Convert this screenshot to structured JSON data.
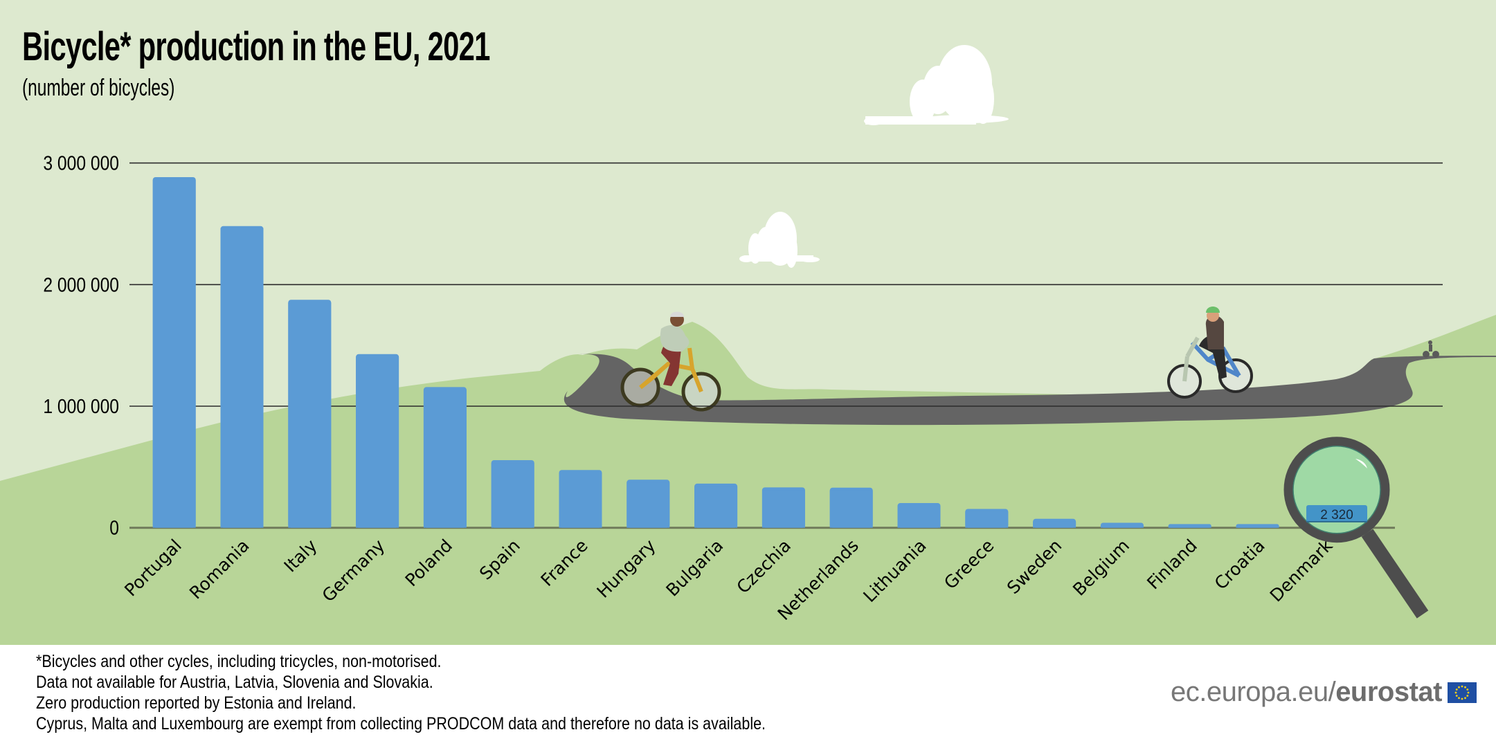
{
  "title": "Bicycle* production in the EU, 2021",
  "subtitle": "(number of bicycles)",
  "chart_data": {
    "type": "bar",
    "title": "Bicycle* production in the EU, 2021",
    "subtitle": "(number of bicycles)",
    "xlabel": "",
    "ylabel": "number of bicycles",
    "ylim": [
      0,
      3000000
    ],
    "yticks": [
      0,
      1000000,
      2000000,
      3000000
    ],
    "ytick_labels": [
      "0",
      "1 000 000",
      "2 000 000",
      "3 000 000"
    ],
    "grid": true,
    "legend": "none",
    "categories": [
      "Portugal",
      "Romania",
      "Italy",
      "Germany",
      "Poland",
      "Spain",
      "France",
      "Hungary",
      "Bulgaria",
      "Czechia",
      "Netherlands",
      "Lithuania",
      "Greece",
      "Sweden",
      "Belgium",
      "Finland",
      "Croatia",
      "Denmark"
    ],
    "values": [
      2884000,
      2481000,
      1875000,
      1428000,
      1157000,
      556000,
      475000,
      395000,
      363000,
      332000,
      330000,
      203000,
      155000,
      74000,
      41000,
      30000,
      30000,
      2320
    ],
    "bar_color": "#5b9bd5",
    "annotations": [
      {
        "category": "Denmark",
        "label": "2 320",
        "style": "magnifying-glass"
      }
    ]
  },
  "footnotes": [
    "*Bicycles and other cycles, including tricycles, non-motorised.",
    "Data not available for Austria, Latvia, Slovenia and Slovakia.",
    "Zero production reported by Estonia and Ireland.",
    "Cyprus, Malta and Luxembourg are exempt from collecting PRODCOM data and therefore no data is available."
  ],
  "brand": {
    "prefix": "ec.europa.eu/",
    "name": "eurostat",
    "flag_icon": "eu-flag-icon"
  },
  "colors": {
    "sky": "#dde9cf",
    "hill": "#b8d598",
    "road": "#646464",
    "bar": "#5b9bd5",
    "lens": "#9fd9a5",
    "magnifier_frame": "#4d4d4d",
    "label_box": "#4394c8"
  }
}
